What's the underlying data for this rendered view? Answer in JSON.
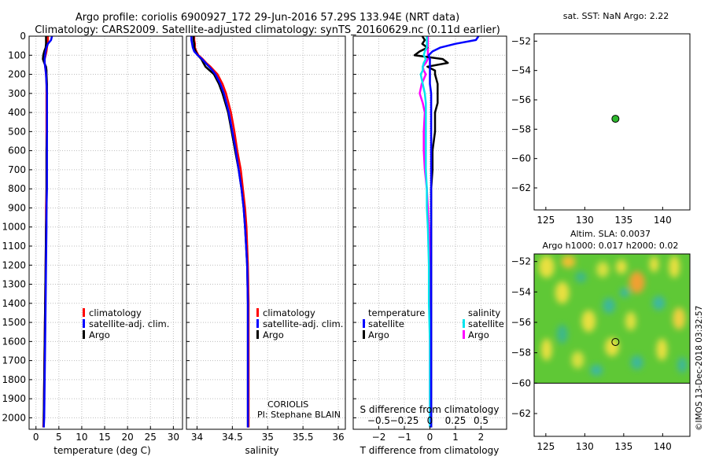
{
  "header": {
    "title_line1": "Argo profile: coriolis 6900927_172 29-Jun-2016 57.29S 133.94E (NRT data)",
    "title_line2": "Climatology: CARS2009. Satellite-adjusted climatology: synTS_20160629.nc (0.11d earlier)"
  },
  "colors": {
    "climatology": "#ff0000",
    "satellite": "#0000ff",
    "argo": "#000000",
    "sat_temp_diff": "#0000ff",
    "sat_sal_diff": "#00e5ee",
    "argo_sal_diff": "#ff00ff",
    "marker": "#2db82d"
  },
  "depth_axis": {
    "ticks": [
      0,
      100,
      200,
      300,
      400,
      500,
      600,
      700,
      800,
      900,
      1000,
      1100,
      1200,
      1300,
      1400,
      1500,
      1600,
      1700,
      1800,
      1900,
      2000
    ],
    "range": [
      0,
      2060
    ]
  },
  "panel_temperature": {
    "xlabel": "temperature (deg C)",
    "xticks": [
      0,
      5,
      10,
      15,
      20,
      25,
      30
    ],
    "xlim": [
      -1.5,
      32
    ],
    "legend": [
      "climatology",
      "satellite-adj. clim.",
      "Argo"
    ]
  },
  "panel_salinity": {
    "xlabel": "salinity",
    "xticks": [
      34,
      34.5,
      35,
      35.5,
      36
    ],
    "xlim": [
      33.85,
      36.1
    ],
    "legend": [
      "climatology",
      "satellite-adj. clim.",
      "Argo"
    ],
    "credit_line1": "CORIOLIS",
    "credit_line2": "PI: Stephane BLAIN"
  },
  "panel_difference": {
    "xlabel": "T difference from climatology",
    "top_label": "S difference from climatology",
    "xticks_T": [
      -2,
      -1,
      0,
      1,
      2
    ],
    "xticks_S": [
      -0.5,
      -0.25,
      0,
      0.25,
      0.5
    ],
    "xlim_T": [
      -3,
      3
    ],
    "legend_temperature_title": "temperature",
    "legend_salinity_title": "salinity",
    "legend_temperature": [
      "satellite",
      "Argo"
    ],
    "legend_salinity": [
      "satellite",
      "Argo"
    ]
  },
  "map_sst": {
    "title": "sat. SST: NaN Argo: 2.22",
    "xticks": [
      125,
      130,
      135,
      140
    ],
    "yticks": [
      -52,
      -54,
      -56,
      -58,
      -60,
      -62
    ],
    "xlim": [
      123.5,
      143.5
    ],
    "ylim": [
      -63.5,
      -51.5
    ],
    "argo_lon": 133.94,
    "argo_lat": -57.29
  },
  "map_sla": {
    "title_line1": "Altim. SLA: 0.0037",
    "title_line2": "Argo h1000: 0.017 h2000: 0.02",
    "xticks": [
      125,
      130,
      135,
      140
    ],
    "yticks": [
      -52,
      -54,
      -56,
      -58,
      -60,
      -62
    ],
    "xlim": [
      123.5,
      143.5
    ],
    "ylim": [
      -63.5,
      -51.5
    ],
    "data_lat_min": -60,
    "argo_lon": 133.94,
    "argo_lat": -57.29
  },
  "watermark": "©IMOS 13-Dec-2018 03:32:57",
  "chart_data": {
    "type": "line",
    "temperature": {
      "depth": [
        0,
        20,
        40,
        60,
        80,
        100,
        120,
        140,
        160,
        180,
        200,
        250,
        300,
        400,
        500,
        600,
        700,
        800,
        900,
        1000,
        1200,
        1400,
        1600,
        1800,
        2000,
        2050
      ],
      "climatology": [
        2.6,
        2.6,
        2.5,
        2.4,
        2.3,
        2.1,
        1.9,
        1.9,
        2.0,
        2.1,
        2.2,
        2.3,
        2.3,
        2.3,
        2.3,
        2.3,
        2.3,
        2.3,
        2.2,
        2.2,
        2.1,
        2.0,
        1.9,
        1.8,
        1.7,
        1.6
      ],
      "satellite": [
        3.5,
        3.3,
        2.6,
        2.3,
        2.1,
        2.0,
        1.9,
        1.9,
        2.0,
        2.1,
        2.2,
        2.3,
        2.4,
        2.4,
        2.4,
        2.4,
        2.4,
        2.4,
        2.3,
        2.3,
        2.2,
        2.1,
        2.0,
        1.9,
        1.8,
        1.7
      ],
      "argo": [
        2.2,
        2.2,
        2.2,
        2.1,
        1.8,
        1.6,
        1.5,
        1.8,
        2.2,
        2.3,
        2.3,
        2.4,
        2.4,
        2.4,
        2.4,
        2.3,
        2.3,
        2.3,
        2.3,
        2.2,
        2.1,
        2.0,
        1.9,
        1.8,
        1.7,
        1.7
      ]
    },
    "salinity": {
      "depth": [
        0,
        20,
        40,
        60,
        80,
        100,
        120,
        140,
        160,
        180,
        200,
        250,
        300,
        400,
        500,
        600,
        700,
        800,
        900,
        1000,
        1200,
        1400,
        1600,
        1800,
        2000,
        2050
      ],
      "climatology": [
        33.96,
        33.96,
        33.97,
        33.97,
        33.99,
        34.02,
        34.08,
        34.13,
        34.19,
        34.24,
        34.29,
        34.36,
        34.41,
        34.48,
        34.53,
        34.57,
        34.62,
        34.65,
        34.68,
        34.7,
        34.72,
        34.73,
        34.73,
        34.73,
        34.73,
        34.73
      ],
      "satellite": [
        33.92,
        33.92,
        33.93,
        33.94,
        33.96,
        34.01,
        34.07,
        34.12,
        34.17,
        34.22,
        34.26,
        34.33,
        34.38,
        34.45,
        34.5,
        34.55,
        34.59,
        34.63,
        34.66,
        34.68,
        34.71,
        34.72,
        34.72,
        34.72,
        34.72,
        34.72
      ],
      "argo": [
        33.95,
        33.95,
        33.96,
        33.96,
        33.98,
        34.01,
        34.06,
        34.09,
        34.12,
        34.18,
        34.24,
        34.31,
        34.36,
        34.44,
        34.49,
        34.54,
        34.59,
        34.63,
        34.66,
        34.68,
        34.71,
        34.72,
        34.72,
        34.72,
        34.72,
        34.72
      ]
    },
    "difference": {
      "depth": [
        0,
        20,
        40,
        60,
        80,
        100,
        120,
        140,
        160,
        180,
        200,
        250,
        300,
        350,
        400,
        500,
        600,
        700,
        800,
        900,
        1000,
        1200,
        1400,
        1600,
        1800,
        2000,
        2050
      ],
      "temp_satellite": [
        1.9,
        1.8,
        1.0,
        0.4,
        0.1,
        -0.05,
        0.0,
        0.0,
        0.0,
        0.0,
        0.0,
        0.0,
        0.05,
        0.05,
        0.05,
        0.05,
        0.05,
        0.05,
        0.05,
        0.05,
        0.05,
        0.05,
        0.05,
        0.05,
        0.05,
        0.05,
        0.05
      ],
      "temp_argo": [
        -0.3,
        -0.2,
        -0.3,
        -0.1,
        -0.4,
        -0.6,
        0.5,
        0.7,
        -0.1,
        0.2,
        0.2,
        0.3,
        0.3,
        0.3,
        0.2,
        0.2,
        0.1,
        0.1,
        0.05,
        0.05,
        0.05,
        0.05,
        0.05,
        0.05,
        0.05,
        0.05,
        0.05
      ],
      "sal_satellite": [
        -0.03,
        -0.03,
        -0.03,
        -0.03,
        -0.05,
        -0.06,
        -0.04,
        -0.06,
        -0.07,
        -0.07,
        -0.09,
        -0.07,
        -0.05,
        -0.04,
        -0.04,
        -0.04,
        -0.04,
        -0.04,
        -0.03,
        -0.03,
        -0.02,
        -0.01,
        -0.01,
        0.0,
        0.0,
        0.0,
        0.0
      ],
      "sal_argo": [
        -0.02,
        -0.02,
        -0.02,
        -0.02,
        -0.02,
        -0.02,
        -0.02,
        -0.04,
        -0.07,
        -0.06,
        -0.04,
        -0.08,
        -0.1,
        -0.07,
        -0.05,
        -0.06,
        -0.06,
        -0.05,
        -0.03,
        -0.02,
        -0.01,
        0.0,
        0.0,
        0.0,
        0.0,
        0.0,
        0.0
      ]
    }
  }
}
